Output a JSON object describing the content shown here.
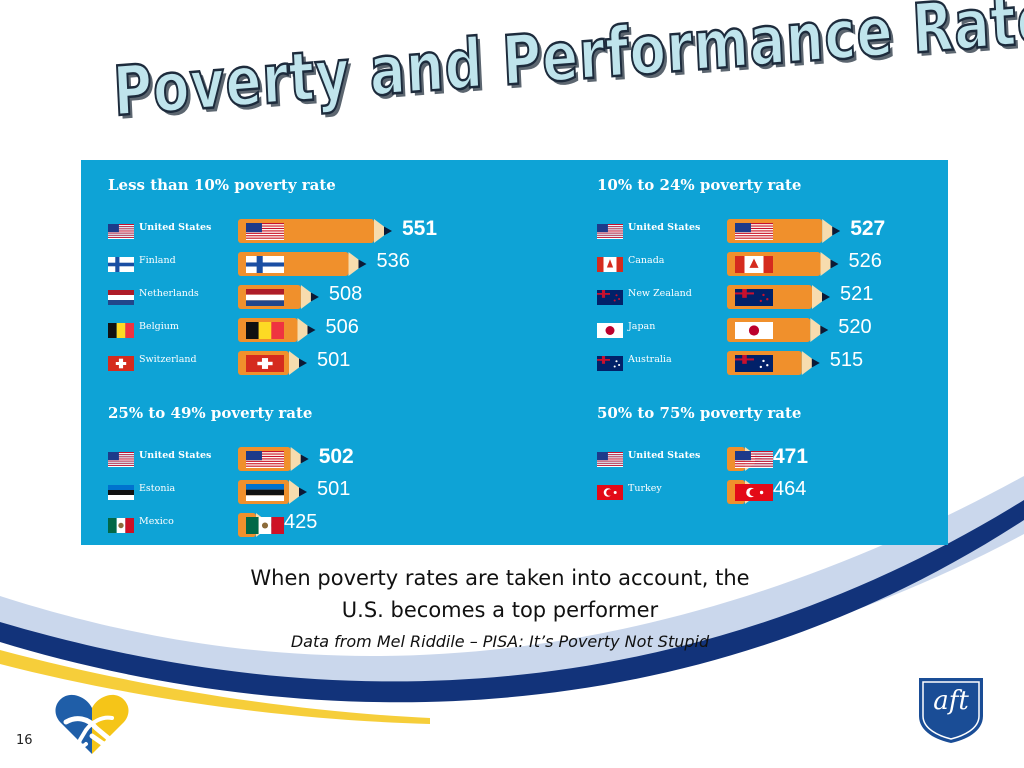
{
  "slide": {
    "title": "Poverty and Performance Rates",
    "number": "16"
  },
  "caption": {
    "line1": "When poverty rates are taken into account, the",
    "line2": "U.S. becomes a top performer",
    "source": "Data from Mel Riddile – PISA: It’s Poverty Not Stupid"
  },
  "colors": {
    "infographic_bg": "#0ea3d6",
    "pencil_body": "#f0902c",
    "pencil_wood": "#f7dcae",
    "pencil_tip": "#0c1a36",
    "swoosh_navy": "#12337a",
    "swoosh_light": "#9fb7dc",
    "heart_blue": "#1f5ea8",
    "heart_gold": "#f5c518"
  },
  "logos": {
    "brand": "aft"
  },
  "chart_data": {
    "type": "bar",
    "panels": [
      {
        "title": "Less than 10% poverty rate",
        "rows": [
          {
            "country": "United States",
            "flag": "us-flag",
            "score": 551,
            "highlight": true
          },
          {
            "country": "Finland",
            "flag": "finland-flag",
            "score": 536,
            "highlight": false
          },
          {
            "country": "Netherlands",
            "flag": "netherlands-flag",
            "score": 508,
            "highlight": false
          },
          {
            "country": "Belgium",
            "flag": "belgium-flag",
            "score": 506,
            "highlight": false
          },
          {
            "country": "Switzerland",
            "flag": "switzerland-flag",
            "score": 501,
            "highlight": false
          }
        ]
      },
      {
        "title": "10% to 24% poverty rate",
        "rows": [
          {
            "country": "United States",
            "flag": "us-flag",
            "score": 527,
            "highlight": true
          },
          {
            "country": "Canada",
            "flag": "canada-flag",
            "score": 526,
            "highlight": false
          },
          {
            "country": "New Zealand",
            "flag": "new-zealand-flag",
            "score": 521,
            "highlight": false
          },
          {
            "country": "Japan",
            "flag": "japan-flag",
            "score": 520,
            "highlight": false
          },
          {
            "country": "Australia",
            "flag": "australia-flag",
            "score": 515,
            "highlight": false
          }
        ]
      },
      {
        "title": "25% to 49% poverty rate",
        "rows": [
          {
            "country": "United States",
            "flag": "us-flag",
            "score": 502,
            "highlight": true
          },
          {
            "country": "Estonia",
            "flag": "estonia-flag",
            "score": 501,
            "highlight": false
          },
          {
            "country": "Mexico",
            "flag": "mexico-flag",
            "score": 425,
            "highlight": false
          }
        ]
      },
      {
        "title": "50% to 75% poverty rate",
        "rows": [
          {
            "country": "United States",
            "flag": "us-flag",
            "score": 471,
            "highlight": true
          },
          {
            "country": "Turkey",
            "flag": "turkey-flag",
            "score": 464,
            "highlight": false
          }
        ]
      }
    ]
  }
}
